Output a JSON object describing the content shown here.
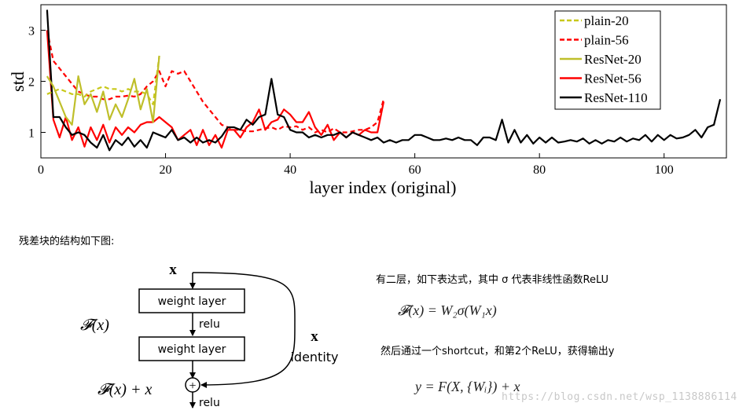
{
  "chart_data": {
    "type": "line",
    "xlabel": "layer index (original)",
    "ylabel": "std",
    "xlim": [
      0,
      110
    ],
    "ylim": [
      0.5,
      3.5
    ],
    "x_ticks": [
      0,
      20,
      40,
      60,
      80,
      100
    ],
    "y_ticks": [
      1,
      2,
      3
    ],
    "grid": false,
    "legend_position": "top-right",
    "series": [
      {
        "name": "plain-20",
        "color": "#c8c81a",
        "style": "dashed",
        "x": [
          1,
          2,
          3,
          4,
          5,
          6,
          7,
          8,
          9,
          10,
          11,
          12,
          13,
          14,
          15,
          16,
          17,
          18,
          19
        ],
        "y": [
          1.75,
          1.8,
          1.85,
          1.8,
          1.75,
          1.75,
          1.7,
          1.8,
          1.85,
          1.9,
          1.85,
          1.85,
          1.8,
          1.85,
          1.8,
          1.8,
          1.75,
          1.55,
          2.5
        ]
      },
      {
        "name": "plain-56",
        "color": "#ff0000",
        "style": "dashed",
        "x": [
          1,
          2,
          3,
          4,
          5,
          6,
          7,
          8,
          9,
          10,
          11,
          12,
          13,
          14,
          15,
          16,
          17,
          18,
          19,
          20,
          21,
          22,
          23,
          24,
          25,
          26,
          27,
          28,
          29,
          30,
          31,
          32,
          33,
          34,
          35,
          36,
          37,
          38,
          39,
          40,
          41,
          42,
          43,
          44,
          45,
          46,
          47,
          48,
          49,
          50,
          51,
          52,
          53,
          54,
          55
        ],
        "y": [
          3.0,
          2.4,
          2.25,
          2.1,
          1.95,
          1.8,
          1.75,
          1.7,
          1.7,
          1.65,
          1.65,
          1.7,
          1.7,
          1.72,
          1.7,
          1.75,
          1.9,
          2.0,
          2.2,
          1.9,
          2.2,
          2.15,
          2.2,
          2.0,
          1.8,
          1.6,
          1.45,
          1.3,
          1.15,
          1.1,
          1.05,
          1.05,
          1.02,
          1.02,
          1.05,
          1.08,
          1.1,
          1.05,
          1.12,
          1.1,
          1.12,
          1.05,
          1.1,
          1.0,
          1.05,
          1.0,
          1.08,
          1.0,
          1.0,
          1.02,
          1.05,
          1.05,
          1.1,
          1.2,
          1.65
        ]
      },
      {
        "name": "ResNet-20",
        "color": "#bfbf2a",
        "style": "solid",
        "x": [
          1,
          2,
          3,
          4,
          5,
          6,
          7,
          8,
          9,
          10,
          11,
          12,
          13,
          14,
          15,
          16,
          17,
          18,
          19
        ],
        "y": [
          2.1,
          1.9,
          1.6,
          1.3,
          1.15,
          2.1,
          1.55,
          1.75,
          1.4,
          1.8,
          1.25,
          1.55,
          1.3,
          1.65,
          2.05,
          1.45,
          1.85,
          1.2,
          2.5
        ]
      },
      {
        "name": "ResNet-56",
        "color": "#ff0000",
        "style": "solid",
        "x": [
          1,
          2,
          3,
          4,
          5,
          6,
          7,
          8,
          9,
          10,
          11,
          12,
          13,
          14,
          15,
          16,
          17,
          18,
          19,
          20,
          21,
          22,
          23,
          24,
          25,
          26,
          27,
          28,
          29,
          30,
          31,
          32,
          33,
          34,
          35,
          36,
          37,
          38,
          39,
          40,
          41,
          42,
          43,
          44,
          45,
          46,
          47,
          48,
          49,
          50,
          51,
          52,
          53,
          54,
          55
        ],
        "y": [
          3.0,
          1.25,
          0.9,
          1.3,
          0.85,
          1.1,
          0.72,
          1.1,
          0.85,
          1.15,
          0.8,
          1.1,
          0.95,
          1.1,
          1.0,
          1.15,
          1.2,
          1.2,
          1.3,
          1.2,
          1.1,
          0.85,
          0.95,
          1.05,
          0.75,
          1.05,
          0.75,
          0.95,
          0.7,
          1.05,
          1.05,
          0.9,
          1.1,
          1.2,
          1.45,
          1.05,
          1.2,
          1.25,
          1.45,
          1.35,
          1.2,
          1.2,
          1.4,
          1.1,
          0.95,
          1.15,
          0.85,
          1.0,
          0.9,
          1.0,
          0.95,
          1.05,
          1.0,
          1.0,
          1.6
        ]
      },
      {
        "name": "ResNet-110",
        "color": "#000000",
        "style": "solid",
        "x": [
          1,
          2,
          3,
          4,
          5,
          6,
          7,
          8,
          9,
          10,
          11,
          12,
          13,
          14,
          15,
          16,
          17,
          18,
          19,
          20,
          21,
          22,
          23,
          24,
          25,
          26,
          27,
          28,
          29,
          30,
          31,
          32,
          33,
          34,
          35,
          36,
          37,
          38,
          39,
          40,
          41,
          42,
          43,
          44,
          45,
          46,
          47,
          48,
          49,
          50,
          51,
          52,
          53,
          54,
          55,
          56,
          57,
          58,
          59,
          60,
          61,
          62,
          63,
          64,
          65,
          66,
          67,
          68,
          69,
          70,
          71,
          72,
          73,
          74,
          75,
          76,
          77,
          78,
          79,
          80,
          81,
          82,
          83,
          84,
          85,
          86,
          87,
          88,
          89,
          90,
          91,
          92,
          93,
          94,
          95,
          96,
          97,
          98,
          99,
          100,
          101,
          102,
          103,
          104,
          105,
          106,
          107,
          108,
          109
        ],
        "y": [
          3.4,
          1.3,
          1.3,
          1.1,
          0.95,
          1.0,
          0.95,
          0.8,
          0.7,
          0.95,
          0.65,
          0.85,
          0.75,
          0.9,
          0.72,
          0.85,
          0.7,
          1.0,
          0.95,
          0.9,
          1.05,
          0.85,
          0.9,
          0.8,
          0.9,
          0.8,
          0.85,
          0.8,
          0.92,
          1.1,
          1.1,
          1.05,
          1.25,
          1.15,
          1.3,
          1.35,
          2.05,
          1.35,
          1.3,
          1.05,
          1.0,
          1.0,
          0.9,
          0.95,
          0.9,
          0.95,
          0.95,
          1.0,
          0.9,
          1.0,
          0.95,
          0.9,
          0.85,
          0.9,
          0.8,
          0.85,
          0.8,
          0.85,
          0.85,
          0.95,
          0.95,
          0.9,
          0.85,
          0.85,
          0.88,
          0.85,
          0.9,
          0.85,
          0.85,
          0.75,
          0.9,
          0.9,
          0.85,
          1.25,
          0.8,
          1.05,
          0.8,
          0.95,
          0.78,
          0.9,
          0.8,
          0.9,
          0.8,
          0.82,
          0.85,
          0.82,
          0.88,
          0.78,
          0.85,
          0.78,
          0.85,
          0.82,
          0.9,
          0.82,
          0.88,
          0.85,
          0.95,
          0.82,
          0.95,
          0.85,
          0.95,
          0.88,
          0.9,
          0.95,
          1.05,
          0.9,
          1.1,
          1.15,
          1.65
        ]
      }
    ]
  },
  "intro_text": "残差块的结构如下图:",
  "diagram": {
    "input": "x",
    "layer1": "weight layer",
    "relu1": "relu",
    "layer2": "weight layer",
    "relu2": "relu",
    "fx": "𝓕(x)",
    "fx_plus_x": "𝓕(x) + x",
    "plus": "+",
    "skip_x": "x",
    "identity": "identity"
  },
  "explanation": {
    "line1": "有二层，如下表达式，其中 σ 代表非线性函数ReLU",
    "formula1": "𝓕(x) = W₂σ(W₁x)",
    "line2": "然后通过一个shortcut，和第2个ReLU，获得输出y",
    "formula2": "y = F(X, {Wᵢ}) + x"
  },
  "watermark": "https://blog.csdn.net/wsp_1138886114"
}
